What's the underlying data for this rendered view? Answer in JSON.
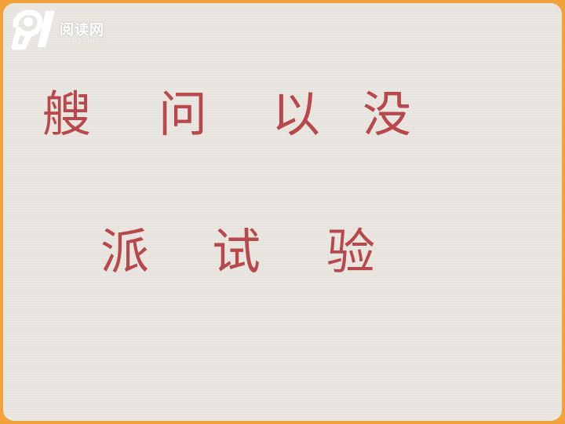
{
  "logo": {
    "name": "阅读网",
    "url": "www.5Yueru.com"
  },
  "characters": {
    "row1": [
      "艘",
      "问",
      "以",
      "没"
    ],
    "row2": [
      "派",
      "试",
      "验"
    ]
  }
}
